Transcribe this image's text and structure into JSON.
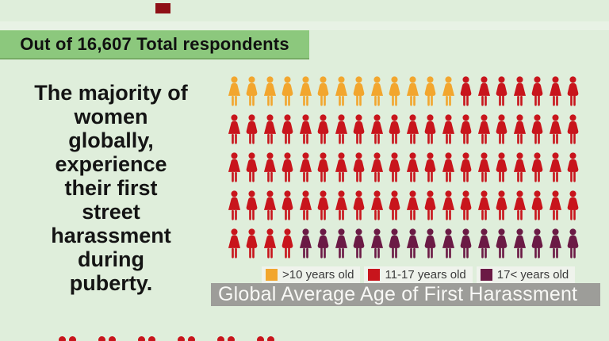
{
  "top_banner": {
    "label": "Out of 16,607 Total respondents",
    "bg": "#8CC87D"
  },
  "headline": {
    "text": "The majority of\nwomen\nglobally,\nexperience\ntheir first\nstreet\nharassment\nduring\npuberty."
  },
  "chart_data": {
    "type": "pictograph",
    "title": "Global Average Age of First Harassment",
    "icon": "woman-figure",
    "grid": {
      "rows": 5,
      "cols": 20,
      "total_icons": 100
    },
    "categories": [
      ">10 years old",
      "11-17 years old",
      "17< years old"
    ],
    "series": [
      {
        "name": ">10 years old",
        "count": 13,
        "color": "#F2A62E"
      },
      {
        "name": "11-17 years old",
        "count": 71,
        "color": "#C8151C"
      },
      {
        "name": "17< years old",
        "count": 16,
        "color": "#6B1A45"
      }
    ],
    "legend_position": "bottom",
    "title_banner": {
      "bg": "#9D9D99",
      "text_color": "#F8F8F5"
    }
  },
  "decor": {
    "top_marker_color": "#8E1016",
    "partial_next_row": {
      "pairs": 6,
      "color": "#C8151C"
    }
  }
}
